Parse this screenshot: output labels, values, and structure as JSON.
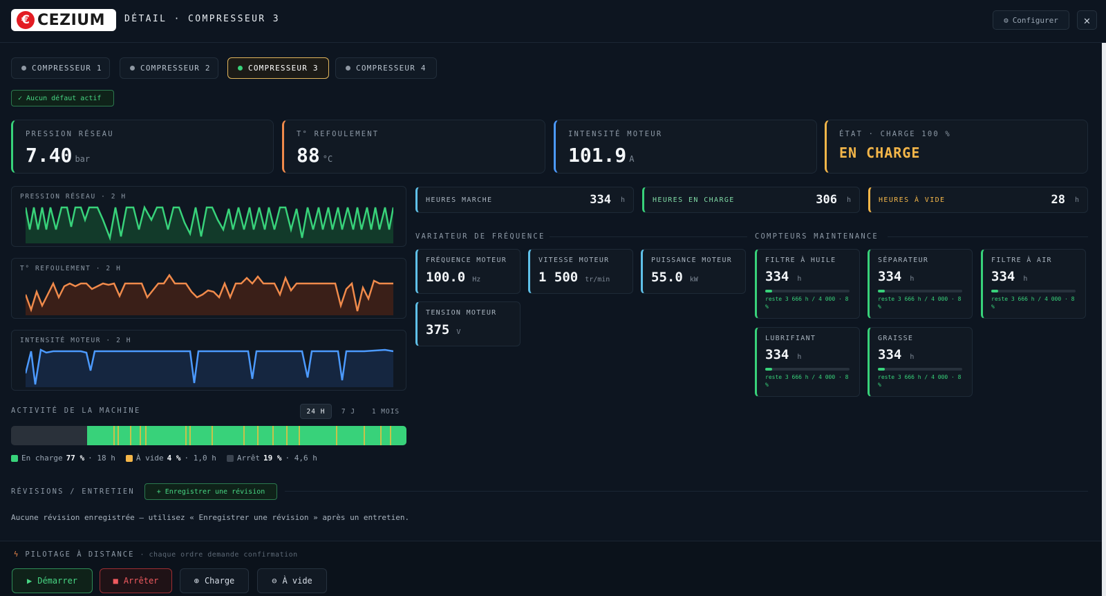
{
  "header": {
    "logo_text": "CEZIUM",
    "logo_mark": "€",
    "title": "DÉTAIL · COMPRESSEUR 3",
    "configure_label": "Configurer",
    "configure_icon": "gear-icon",
    "close_icon": "close-icon"
  },
  "tabs": [
    {
      "label": "COMPRESSEUR 1",
      "active": false
    },
    {
      "label": "COMPRESSEUR 2",
      "active": false
    },
    {
      "label": "COMPRESSEUR 3",
      "active": true
    },
    {
      "label": "COMPRESSEUR 4",
      "active": false
    }
  ],
  "fault_badge": "✓ Aucun défaut actif",
  "kpis": [
    {
      "label": "PRESSION RÉSEAU",
      "value": "7.40",
      "unit": "bar",
      "accent": "#38d27a"
    },
    {
      "label": "T° REFOULEMENT",
      "value": "88",
      "unit": "°C",
      "accent": "#f08a4b"
    },
    {
      "label": "INTENSITÉ MOTEUR",
      "value": "101.9",
      "unit": "A",
      "accent": "#4c9aff"
    },
    {
      "label": "ÉTAT · CHARGE 100 %",
      "value": "EN CHARGE",
      "unit": "",
      "accent": "#f4b649"
    }
  ],
  "sparklines": [
    {
      "label": "PRESSION RÉSEAU · 2 H",
      "color": "#38d27a",
      "fill": "#123a2a"
    },
    {
      "label": "T° REFOULEMENT · 2 H",
      "color": "#f08a4b",
      "fill": "#3a1f18"
    },
    {
      "label": "INTENSITÉ MOTEUR · 2 H",
      "color": "#4c9aff",
      "fill": "#152640"
    }
  ],
  "activity": {
    "title": "ACTIVITÉ DE LA MACHINE",
    "ranges": [
      {
        "label": "24 H",
        "active": true
      },
      {
        "label": "7 J",
        "active": false
      },
      {
        "label": "1 MOIS",
        "active": false
      }
    ],
    "legend": [
      {
        "name": "En charge",
        "pct": "77 %",
        "dur": "· 18 h",
        "color": "#38d27a"
      },
      {
        "name": "À vide",
        "pct": "4 %",
        "dur": "· 1,0 h",
        "color": "#f4b649"
      },
      {
        "name": "Arrêt",
        "pct": "19 %",
        "dur": "· 4,6 h",
        "color": "#3b4450"
      }
    ]
  },
  "hours": [
    {
      "label": "HEURES MARCHE",
      "value": "334",
      "unit": "h",
      "accent": "#5fc0e8",
      "label_color": "#a9b4bf"
    },
    {
      "label": "HEURES EN CHARGE",
      "value": "306",
      "unit": "h",
      "accent": "#38d27a",
      "label_color": "#7fd9a4"
    },
    {
      "label": "HEURES À VIDE",
      "value": "28",
      "unit": "h",
      "accent": "#f4b649",
      "label_color": "#f4b649"
    }
  ],
  "vfd": {
    "title": "VARIATEUR DE FRÉQUENCE",
    "items": [
      {
        "label": "FRÉQUENCE MOTEUR",
        "value": "100.0",
        "unit": "Hz"
      },
      {
        "label": "VITESSE MOTEUR",
        "value": "1 500",
        "unit": "tr/min"
      },
      {
        "label": "PUISSANCE MOTEUR",
        "value": "55.0",
        "unit": "kW"
      },
      {
        "label": "TENSION MOTEUR",
        "value": "375",
        "unit": "V"
      }
    ]
  },
  "maintenance": {
    "title": "COMPTEURS MAINTENANCE",
    "items": [
      {
        "label": "FILTRE À HUILE",
        "value": "334",
        "unit": "h",
        "rest": "reste 3 666 h / 4 000 · 8 %",
        "progress": 0.08
      },
      {
        "label": "SÉPARATEUR",
        "value": "334",
        "unit": "h",
        "rest": "reste 3 666 h / 4 000 · 8 %",
        "progress": 0.08
      },
      {
        "label": "FILTRE À AIR",
        "value": "334",
        "unit": "h",
        "rest": "reste 3 666 h / 4 000 · 8 %",
        "progress": 0.08
      },
      {
        "label": "LUBRIFIANT",
        "value": "334",
        "unit": "h",
        "rest": "reste 3 666 h / 4 000 · 8 %",
        "progress": 0.08
      },
      {
        "label": "GRAISSE",
        "value": "334",
        "unit": "h",
        "rest": "reste 3 666 h / 4 000 · 8 %",
        "progress": 0.08
      }
    ]
  },
  "revisions": {
    "title": "RÉVISIONS / ENTRETIEN",
    "add_label": "+ Enregistrer une révision",
    "empty_text": "Aucune révision enregistrée — utilisez « Enregistrer une révision » après un entretien."
  },
  "remote": {
    "title": "PILOTAGE À DISTANCE",
    "note": "· chaque ordre demande confirmation",
    "icon": "lightning-icon",
    "buttons": [
      {
        "label": "Démarrer",
        "icon": "play-icon"
      },
      {
        "label": "Arrêter",
        "icon": "stop-icon"
      },
      {
        "label": "Charge",
        "icon": "plus-circle-icon"
      },
      {
        "label": "À vide",
        "icon": "minus-circle-icon"
      }
    ]
  }
}
